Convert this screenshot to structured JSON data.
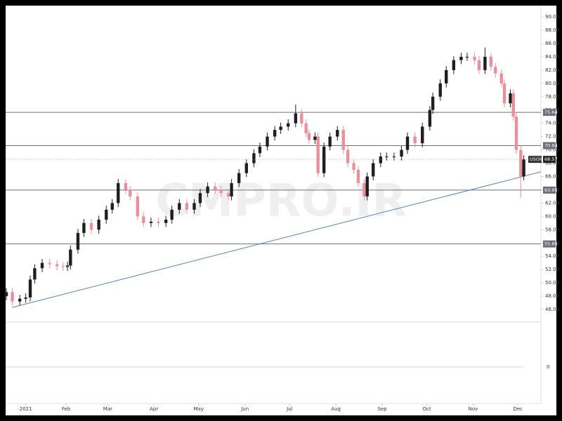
{
  "watermark": "CMPRO.IR",
  "chart_data": {
    "type": "candlestick",
    "symbol": "USOIL",
    "last_price": 68.57,
    "up_color": "#1f1f1f",
    "down_color": "#e8919c",
    "ylim": [
      44.1,
      91.7
    ],
    "yticks": [
      {
        "value": 46,
        "label": "46.00"
      },
      {
        "value": 48,
        "label": "48.00"
      },
      {
        "value": 50,
        "label": "50.00"
      },
      {
        "value": 52,
        "label": "52.00"
      },
      {
        "value": 54,
        "label": "54.00"
      },
      {
        "value": 56,
        "label": "56.00"
      },
      {
        "value": 58,
        "label": "58.00"
      },
      {
        "value": 60,
        "label": "60.00"
      },
      {
        "value": 62,
        "label": "62.00"
      },
      {
        "value": 64,
        "label": "64.00"
      },
      {
        "value": 66,
        "label": "66.00"
      },
      {
        "value": 68,
        "label": "68.00"
      },
      {
        "value": 70,
        "label": "70.00"
      },
      {
        "value": 72,
        "label": "72.00"
      },
      {
        "value": 74,
        "label": "74.00"
      },
      {
        "value": 76,
        "label": "76.00"
      },
      {
        "value": 78,
        "label": "78.00"
      },
      {
        "value": 80,
        "label": "80.00"
      },
      {
        "value": 82,
        "label": "82.00"
      },
      {
        "value": 84,
        "label": "84.00"
      },
      {
        "value": 86,
        "label": "86.00"
      },
      {
        "value": 88,
        "label": "88.00"
      },
      {
        "value": 90,
        "label": "90.00"
      }
    ],
    "xlim": [
      -9.5,
      349.5
    ],
    "xticks": [
      {
        "value": 4,
        "label": "2021"
      },
      {
        "value": 31,
        "label": "Feb"
      },
      {
        "value": 59,
        "label": "Mar"
      },
      {
        "value": 90,
        "label": "Apr"
      },
      {
        "value": 120,
        "label": "May"
      },
      {
        "value": 151,
        "label": "Jun"
      },
      {
        "value": 181,
        "label": "Jul"
      },
      {
        "value": 212,
        "label": "Aug"
      },
      {
        "value": 243,
        "label": "Sep"
      },
      {
        "value": 273,
        "label": "Oct"
      },
      {
        "value": 304,
        "label": "Nov"
      },
      {
        "value": 334,
        "label": "Dec"
      }
    ],
    "lower_pane_yticks": [
      0
    ],
    "levels": [
      75.64,
      70.64,
      63.95,
      55.85
    ],
    "level_color": "#6b6f7a",
    "trendline": {
      "x": [
        -5,
        349.5
      ],
      "y": [
        46.3,
        66.7
      ],
      "color": "#5b7fb5"
    },
    "x": [
      -9,
      -5,
      0,
      4,
      7,
      10,
      15,
      20,
      25,
      29,
      32,
      34,
      39,
      43,
      48,
      53,
      58,
      62,
      66,
      71,
      74,
      79,
      83,
      88,
      93,
      98,
      102,
      107,
      112,
      117,
      121,
      126,
      131,
      135,
      140,
      142,
      147,
      152,
      157,
      161,
      166,
      171,
      175,
      180,
      185,
      189,
      192,
      194,
      198,
      200,
      204,
      208,
      213,
      217,
      220,
      224,
      227,
      231,
      233,
      237,
      242,
      246,
      251,
      256,
      260,
      265,
      270,
      275,
      277,
      282,
      286,
      291,
      296,
      300,
      305,
      308,
      312,
      316,
      319,
      323,
      325,
      329,
      331,
      333,
      336,
      338
    ],
    "open": [
      48.0,
      48.6,
      47.2,
      47.6,
      47.8,
      50.5,
      52.2,
      53.0,
      52.8,
      52.5,
      52.4,
      52.6,
      55.0,
      57.5,
      59.0,
      58.0,
      59.5,
      61.0,
      62.0,
      65.0,
      64.0,
      63.0,
      60.0,
      59.0,
      59.2,
      59.0,
      59.5,
      61.0,
      62.0,
      61.0,
      62.0,
      63.5,
      64.5,
      64.0,
      63.5,
      63.0,
      65.0,
      66.5,
      68.0,
      69.5,
      70.5,
      72.0,
      73.0,
      73.5,
      74.0,
      75.5,
      74.0,
      72.5,
      71.5,
      72.0,
      66.5,
      70.5,
      72.0,
      73.0,
      70.0,
      68.0,
      67.0,
      65.0,
      63.0,
      66.0,
      68.0,
      69.0,
      69.0,
      69.0,
      70.0,
      72.0,
      71.0,
      73.5,
      76.0,
      78.0,
      80.0,
      82.0,
      83.5,
      84.0,
      84.0,
      83.5,
      82.0,
      84.0,
      82.5,
      81.5,
      80.0,
      77.0,
      78.5,
      75.0,
      70.0,
      66.0
    ],
    "high": [
      49.2,
      49.2,
      48.2,
      48.4,
      51.1,
      52.8,
      53.6,
      53.6,
      53.4,
      53.1,
      53.2,
      55.6,
      58.1,
      59.6,
      59.6,
      60.1,
      61.6,
      62.6,
      65.6,
      65.6,
      64.6,
      63.6,
      60.6,
      59.8,
      59.8,
      60.1,
      61.6,
      62.6,
      62.6,
      62.6,
      64.1,
      65.1,
      65.1,
      64.6,
      64.1,
      65.6,
      67.1,
      68.6,
      70.1,
      71.1,
      72.6,
      73.6,
      74.1,
      74.6,
      76.8,
      76.1,
      74.6,
      73.1,
      72.6,
      72.6,
      71.1,
      72.6,
      73.6,
      73.6,
      70.6,
      68.6,
      67.6,
      65.6,
      66.6,
      68.6,
      69.6,
      69.6,
      69.6,
      70.6,
      72.6,
      72.6,
      74.1,
      76.6,
      78.6,
      80.6,
      82.6,
      84.1,
      84.6,
      84.6,
      84.6,
      84.1,
      85.4,
      84.6,
      83.1,
      82.1,
      80.6,
      79.1,
      79.1,
      75.6,
      70.6,
      69.2
    ],
    "low": [
      47.4,
      46.6,
      46.6,
      47.0,
      47.2,
      49.9,
      51.6,
      52.2,
      51.9,
      51.8,
      51.8,
      52.0,
      54.4,
      56.9,
      57.4,
      57.4,
      58.9,
      60.4,
      61.4,
      63.4,
      62.4,
      59.4,
      58.4,
      58.4,
      58.4,
      58.4,
      58.9,
      60.4,
      60.4,
      60.4,
      61.4,
      62.9,
      63.4,
      62.9,
      62.4,
      62.4,
      64.4,
      65.9,
      67.4,
      68.9,
      69.9,
      71.4,
      72.4,
      72.9,
      73.4,
      73.4,
      71.9,
      70.9,
      70.9,
      65.9,
      65.9,
      69.9,
      71.4,
      69.4,
      67.4,
      66.4,
      64.4,
      62.4,
      62.4,
      65.4,
      67.4,
      68.4,
      68.4,
      68.4,
      69.4,
      70.4,
      70.4,
      72.9,
      75.4,
      77.4,
      79.4,
      81.4,
      82.9,
      83.4,
      82.9,
      81.4,
      81.4,
      81.9,
      80.9,
      79.4,
      76.4,
      76.4,
      74.4,
      69.4,
      62.8,
      65.4
    ],
    "close": [
      48.6,
      47.2,
      47.6,
      47.8,
      50.5,
      52.2,
      53.0,
      52.8,
      52.5,
      52.4,
      52.6,
      55.0,
      57.5,
      59.0,
      58.0,
      59.5,
      61.0,
      62.0,
      65.0,
      64.0,
      63.0,
      60.0,
      59.0,
      59.2,
      59.0,
      59.5,
      61.0,
      62.0,
      61.0,
      62.0,
      63.5,
      64.5,
      64.0,
      63.5,
      63.0,
      65.0,
      66.5,
      68.0,
      69.5,
      70.5,
      72.0,
      73.0,
      73.5,
      74.0,
      75.5,
      74.0,
      72.5,
      71.5,
      72.0,
      66.5,
      70.5,
      72.0,
      73.0,
      70.0,
      68.0,
      67.0,
      65.0,
      63.0,
      66.0,
      68.0,
      69.0,
      69.0,
      69.0,
      70.0,
      72.0,
      71.0,
      73.5,
      76.0,
      78.0,
      80.0,
      82.0,
      83.5,
      84.0,
      84.0,
      83.5,
      82.0,
      84.0,
      82.5,
      81.5,
      80.0,
      77.0,
      78.5,
      75.0,
      70.0,
      66.0,
      68.57
    ]
  }
}
